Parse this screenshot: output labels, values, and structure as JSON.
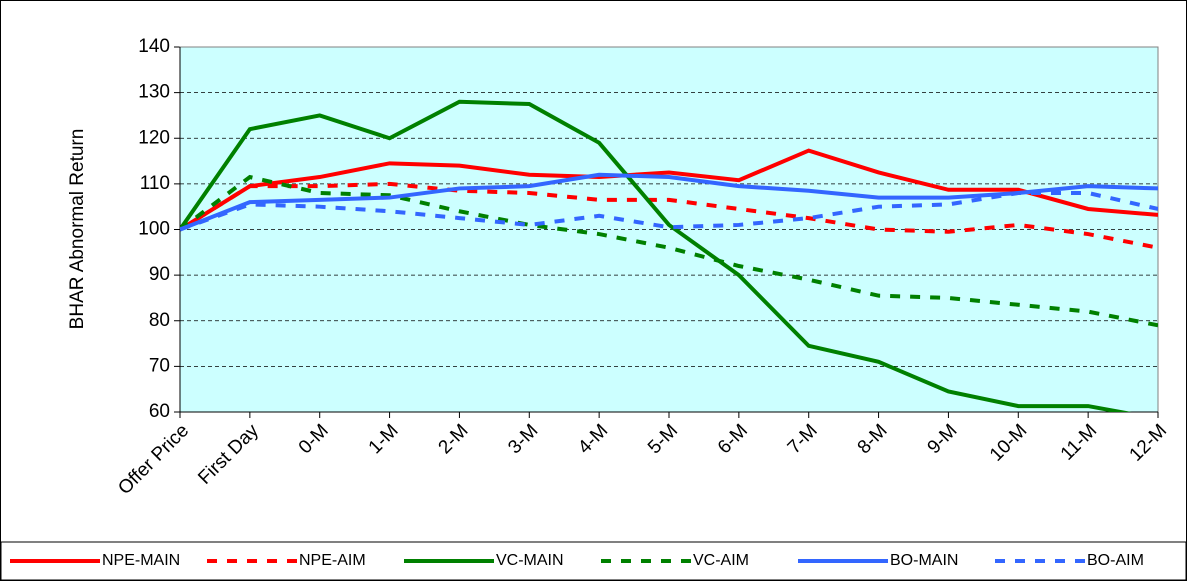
{
  "chart_data": {
    "type": "line",
    "y_label": "BHAR Abnormal Return",
    "categories": [
      "Offer Price",
      "First Day",
      "0-M",
      "1-M",
      "2-M",
      "3-M",
      "4-M",
      "5-M",
      "6-M",
      "7-M",
      "8-M",
      "9-M",
      "10-M",
      "11-M",
      "12-M"
    ],
    "series": [
      {
        "name": "NPE-MAIN",
        "color": "#ff0000",
        "dashed": false,
        "values": [
          100,
          109.5,
          111.5,
          114.5,
          114,
          112,
          111.5,
          112.5,
          110.8,
          117.3,
          112.5,
          108.7,
          108.7,
          104.5,
          103.2
        ]
      },
      {
        "name": "NPE-AIM",
        "color": "#ff0000",
        "dashed": true,
        "values": [
          100,
          109.5,
          109.5,
          110,
          108.5,
          108,
          106.5,
          106.5,
          104.5,
          102.5,
          100,
          99.5,
          101,
          99,
          96
        ]
      },
      {
        "name": "VC-MAIN",
        "color": "#008000",
        "dashed": false,
        "values": [
          100,
          122,
          125,
          120,
          128,
          127.5,
          119,
          101,
          90,
          74.5,
          71,
          64.5,
          61.3,
          61.3,
          58.5
        ]
      },
      {
        "name": "VC-AIM",
        "color": "#008000",
        "dashed": true,
        "values": [
          100,
          111.5,
          108,
          107.5,
          104,
          101,
          99,
          96,
          92,
          89,
          85.5,
          85,
          83.5,
          82,
          79
        ]
      },
      {
        "name": "BO-MAIN",
        "color": "#3366ff",
        "dashed": false,
        "values": [
          100,
          106,
          106.5,
          107,
          109,
          109.5,
          112,
          111.5,
          109.5,
          108.5,
          107,
          107,
          108,
          109.5,
          109
        ]
      },
      {
        "name": "BO-AIM",
        "color": "#3366ff",
        "dashed": true,
        "values": [
          100,
          105.5,
          105,
          104,
          102.5,
          101,
          103,
          100.5,
          101,
          102.5,
          105,
          105.5,
          108,
          108,
          104.5
        ]
      }
    ],
    "ylim": [
      60,
      140
    ],
    "yticks": [
      60,
      70,
      80,
      90,
      100,
      110,
      120,
      130,
      140
    ],
    "grid": true,
    "legend": "bottom",
    "plot_background": "#ccffff"
  }
}
